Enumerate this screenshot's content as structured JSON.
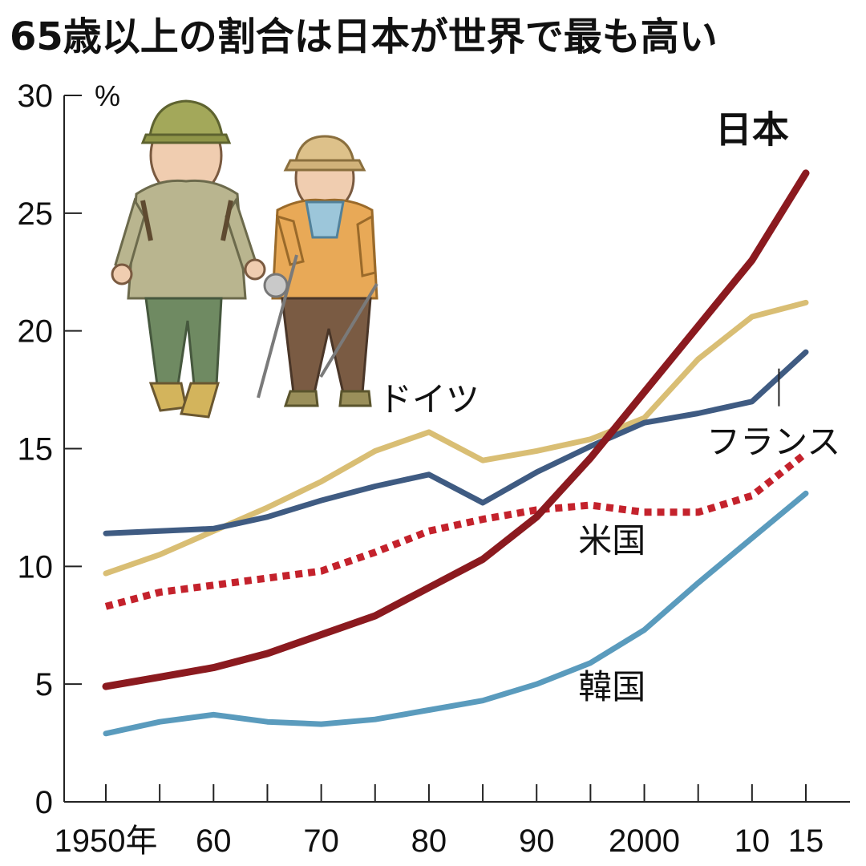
{
  "chart_data": {
    "type": "line",
    "title": "65歳以上の割合は日本が世界で最も高い",
    "y_unit": "%",
    "ylim": [
      0,
      30
    ],
    "yticks": [
      0,
      5,
      10,
      15,
      20,
      25,
      30
    ],
    "xlim": [
      1950,
      2015
    ],
    "xticks": [
      1950,
      1955,
      1960,
      1965,
      1970,
      1975,
      1980,
      1985,
      1990,
      1995,
      2000,
      2005,
      2010,
      2015
    ],
    "xtick_labels": [
      {
        "x": 1950,
        "label": "1950年"
      },
      {
        "x": 1960,
        "label": "60"
      },
      {
        "x": 1970,
        "label": "70"
      },
      {
        "x": 1980,
        "label": "80"
      },
      {
        "x": 1990,
        "label": "90"
      },
      {
        "x": 2000,
        "label": "2000"
      },
      {
        "x": 2010,
        "label": "10"
      },
      {
        "x": 2015,
        "label": "15"
      }
    ],
    "x": [
      1950,
      1955,
      1960,
      1965,
      1970,
      1975,
      1980,
      1985,
      1990,
      1995,
      2000,
      2005,
      2010,
      2015
    ],
    "series": [
      {
        "name": "日本",
        "color": "#8b1a1f",
        "dash": "solid",
        "values": [
          4.9,
          5.3,
          5.7,
          6.3,
          7.1,
          7.9,
          9.1,
          10.3,
          12.1,
          14.6,
          17.4,
          20.2,
          23.0,
          26.7
        ]
      },
      {
        "name": "ドイツ",
        "color": "#d9be74",
        "dash": "solid",
        "values": [
          9.7,
          10.5,
          11.5,
          12.5,
          13.6,
          14.9,
          15.7,
          14.5,
          14.9,
          15.4,
          16.3,
          18.8,
          20.6,
          21.2
        ]
      },
      {
        "name": "フランス",
        "color": "#3f5b82",
        "dash": "solid",
        "values": [
          11.4,
          11.5,
          11.6,
          12.1,
          12.8,
          13.4,
          13.9,
          12.7,
          14.0,
          15.1,
          16.1,
          16.5,
          17.0,
          19.1
        ]
      },
      {
        "name": "米国",
        "color": "#c4222c",
        "dash": "dotted",
        "values": [
          8.3,
          8.9,
          9.2,
          9.5,
          9.8,
          10.6,
          11.5,
          12.0,
          12.4,
          12.6,
          12.3,
          12.3,
          13.0,
          14.8
        ]
      },
      {
        "name": "韓国",
        "color": "#5a9bbd",
        "dash": "solid",
        "values": [
          2.9,
          3.4,
          3.7,
          3.4,
          3.3,
          3.5,
          3.9,
          4.3,
          5.0,
          5.9,
          7.3,
          9.3,
          11.2,
          13.1
        ]
      }
    ],
    "labels": [
      {
        "series": "日本",
        "text": "日本",
        "x": 2010,
        "y": 28.0,
        "bold": true
      },
      {
        "series": "ドイツ",
        "text": "ドイツ",
        "x": 1980,
        "y": 16.6
      },
      {
        "series": "フランス",
        "text": "フランス",
        "x": 2012,
        "y": 14.8
      },
      {
        "series": "米国",
        "text": "米国",
        "x": 1997,
        "y": 10.6
      },
      {
        "series": "韓国",
        "text": "韓国",
        "x": 1997,
        "y": 4.4
      }
    ],
    "grid": false,
    "legend": "inline"
  }
}
